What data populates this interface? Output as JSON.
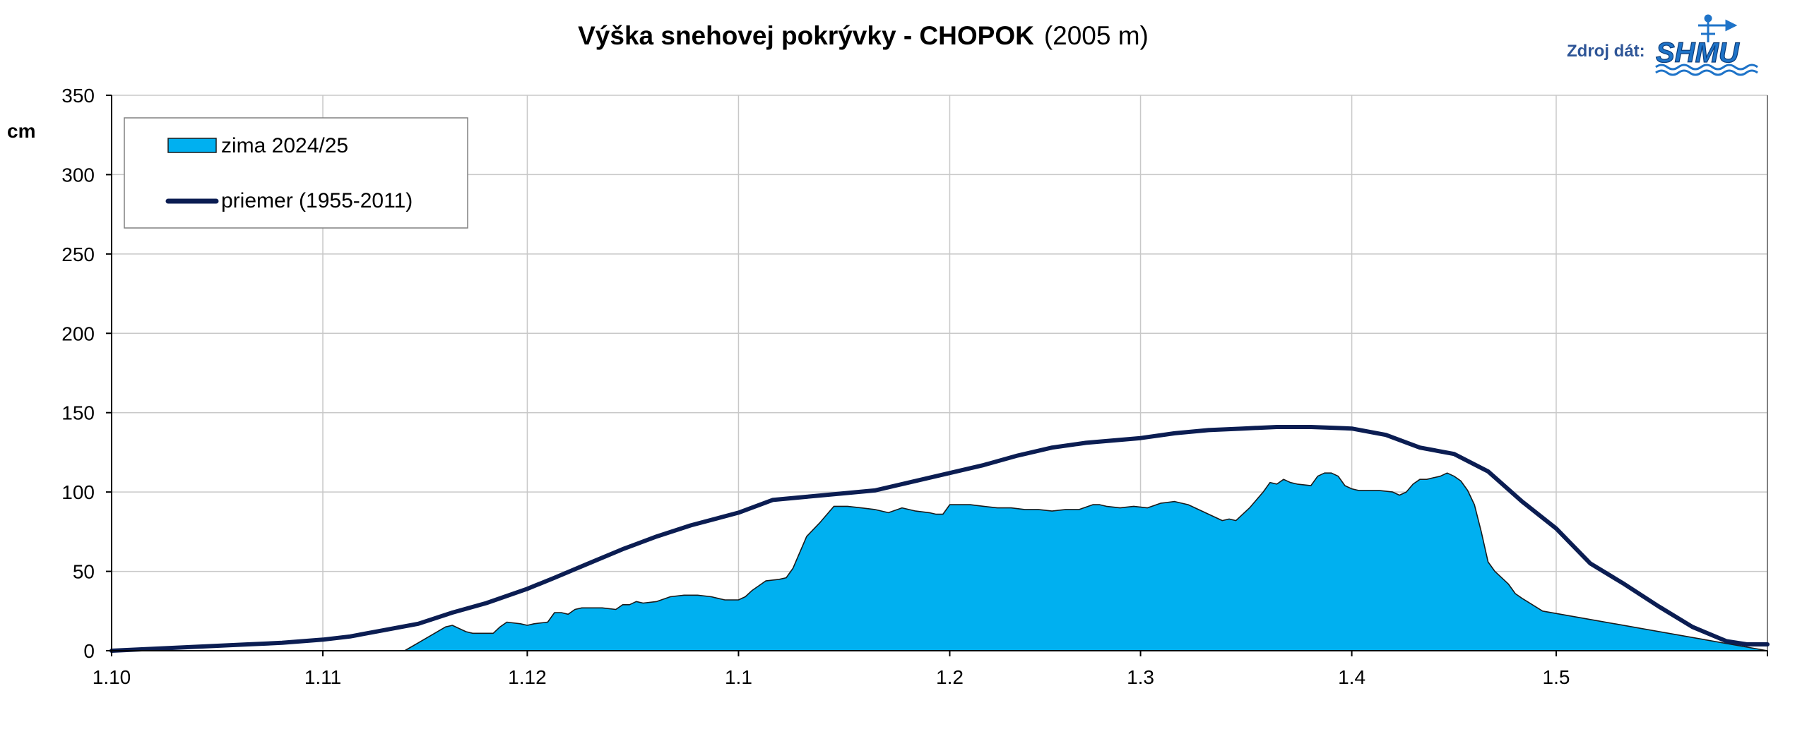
{
  "title": "Výška snehovej pokrývky - CHOPOK",
  "title_suffix": "(2005 m)",
  "source_label": "Zdroj dát:",
  "logo_text": "SHMU",
  "colors": {
    "area_fill": "#00b0f0",
    "area_stroke": "#1a1a1a",
    "avg_line": "#0b1d52",
    "grid": "#c8c8c8",
    "source_text": "#2e5597"
  },
  "chart_data": {
    "type": "area",
    "ylabel": "cm",
    "ylim": [
      0,
      350
    ],
    "yticks": [
      0,
      50,
      100,
      150,
      200,
      250,
      300,
      350
    ],
    "xticks": [
      "1.10",
      "1.11",
      "1.12",
      "1.1",
      "1.2",
      "1.3",
      "1.4",
      "1.5"
    ],
    "xlim_days": [
      0,
      243
    ],
    "xticks_days": [
      0,
      31,
      61,
      92,
      123,
      151,
      182,
      212
    ],
    "grid": true,
    "legend_position": "top-left",
    "series": [
      {
        "name": "zima 2024/25",
        "type": "area",
        "days": [
          0,
          43,
          45,
          49,
          50,
          52,
          53,
          56,
          57,
          58,
          60,
          61,
          62,
          64,
          65,
          66,
          67,
          68,
          69,
          70,
          72,
          74,
          75,
          76,
          77,
          78,
          80,
          82,
          84,
          86,
          88,
          89,
          90,
          91,
          92,
          93,
          94,
          96,
          98,
          99,
          100,
          102,
          104,
          106,
          107,
          108,
          110,
          112,
          113,
          114,
          116,
          118,
          120,
          121,
          122,
          123,
          124,
          126,
          128,
          130,
          132,
          134,
          136,
          138,
          140,
          142,
          144,
          145,
          146,
          148,
          150,
          152,
          154,
          156,
          158,
          160,
          161,
          162,
          163,
          164,
          165,
          167,
          169,
          170,
          171,
          172,
          173,
          174,
          176,
          177,
          178,
          179,
          180,
          181,
          182,
          183,
          184,
          186,
          188,
          189,
          190,
          191,
          192,
          193,
          194,
          195,
          196,
          197,
          198,
          199,
          200,
          201,
          202,
          203,
          204,
          205,
          206,
          207,
          210,
          243
        ],
        "values": [
          0,
          0,
          5,
          15,
          16,
          12,
          11,
          11,
          15,
          18,
          17,
          16,
          17,
          18,
          24,
          24,
          23,
          26,
          27,
          27,
          27,
          26,
          29,
          29,
          31,
          30,
          31,
          34,
          35,
          35,
          34,
          33,
          32,
          32,
          32,
          34,
          38,
          44,
          45,
          46,
          52,
          72,
          81,
          91,
          91,
          91,
          90,
          89,
          88,
          87,
          90,
          88,
          87,
          86,
          86,
          92,
          92,
          92,
          91,
          90,
          90,
          89,
          89,
          88,
          89,
          89,
          92,
          92,
          91,
          90,
          91,
          90,
          93,
          94,
          92,
          88,
          86,
          84,
          82,
          83,
          82,
          90,
          100,
          106,
          105,
          108,
          106,
          105,
          104,
          110,
          112,
          112,
          110,
          104,
          102,
          101,
          101,
          101,
          100,
          98,
          100,
          105,
          108,
          108,
          109,
          110,
          112,
          110,
          107,
          101,
          92,
          75,
          56,
          50,
          46,
          42,
          36,
          33,
          25,
          0
        ]
      },
      {
        "name": "priemer (1955-2011)",
        "type": "line",
        "days": [
          0,
          5,
          10,
          15,
          20,
          25,
          31,
          35,
          40,
          45,
          50,
          55,
          61,
          65,
          70,
          75,
          80,
          85,
          92,
          97,
          102,
          107,
          112,
          117,
          123,
          128,
          133,
          138,
          143,
          151,
          156,
          161,
          166,
          171,
          176,
          182,
          187,
          192,
          197,
          202,
          207,
          212,
          217,
          222,
          227,
          232,
          237,
          240,
          243
        ],
        "values": [
          0,
          1,
          2,
          3,
          4,
          5,
          7,
          9,
          13,
          17,
          24,
          30,
          39,
          46,
          55,
          64,
          72,
          79,
          87,
          95,
          97,
          99,
          101,
          106,
          112,
          117,
          123,
          128,
          131,
          134,
          137,
          139,
          140,
          141,
          141,
          140,
          136,
          128,
          124,
          113,
          94,
          77,
          55,
          42,
          28,
          15,
          6,
          4,
          4
        ]
      }
    ]
  }
}
